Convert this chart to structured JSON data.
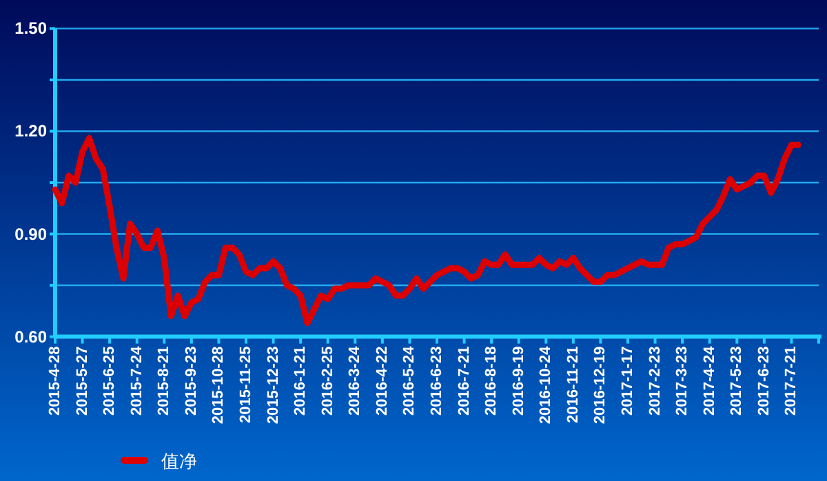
{
  "chart_data": {
    "type": "line",
    "categories": [
      "2015-4-28",
      null,
      null,
      null,
      "2015-5-27",
      null,
      null,
      null,
      "2015-6-25",
      null,
      null,
      null,
      "2015-7-24",
      null,
      null,
      null,
      "2015-8-21",
      null,
      null,
      null,
      "2015-9-23",
      null,
      null,
      null,
      "2015-10-28",
      null,
      null,
      null,
      "2015-11-25",
      null,
      null,
      null,
      "2015-12-23",
      null,
      null,
      null,
      "2016-1-21",
      null,
      null,
      null,
      "2016-2-25",
      null,
      null,
      null,
      "2016-3-24",
      null,
      null,
      null,
      "2016-4-22",
      null,
      null,
      null,
      "2016-5-24",
      null,
      null,
      null,
      "2016-6-23",
      null,
      null,
      null,
      "2016-7-21",
      null,
      null,
      null,
      "2016-8-18",
      null,
      null,
      null,
      "2016-9-19",
      null,
      null,
      null,
      "2016-10-24",
      null,
      null,
      null,
      "2016-11-21",
      null,
      null,
      null,
      "2016-12-19",
      null,
      null,
      null,
      "2017-1-17",
      null,
      null,
      null,
      "2017-2-23",
      null,
      null,
      null,
      "2017-3-23",
      null,
      null,
      null,
      "2017-4-24",
      null,
      null,
      null,
      "2017-5-23",
      null,
      null,
      null,
      "2017-6-23",
      null,
      null,
      null,
      "2017-7-21",
      null,
      null,
      null,
      null
    ],
    "series": [
      {
        "name": "值净",
        "color": "#dd0000",
        "values": [
          1.03,
          0.99,
          1.07,
          1.05,
          1.14,
          1.18,
          1.12,
          1.09,
          0.98,
          0.86,
          0.77,
          0.93,
          0.9,
          0.86,
          0.86,
          0.91,
          0.83,
          0.66,
          0.72,
          0.66,
          0.7,
          0.71,
          0.76,
          0.78,
          0.78,
          0.86,
          0.86,
          0.84,
          0.79,
          0.78,
          0.8,
          0.8,
          0.82,
          0.8,
          0.75,
          0.74,
          0.72,
          0.64,
          0.68,
          0.72,
          0.71,
          0.74,
          0.74,
          0.75,
          0.75,
          0.75,
          0.75,
          0.77,
          0.76,
          0.75,
          0.72,
          0.72,
          0.74,
          0.77,
          0.74,
          0.76,
          0.78,
          0.79,
          0.8,
          0.8,
          0.79,
          0.77,
          0.78,
          0.82,
          0.81,
          0.81,
          0.84,
          0.81,
          0.81,
          0.81,
          0.81,
          0.83,
          0.81,
          0.8,
          0.82,
          0.81,
          0.83,
          0.8,
          0.78,
          0.76,
          0.76,
          0.78,
          0.78,
          0.79,
          0.8,
          0.81,
          0.82,
          0.81,
          0.81,
          0.81,
          0.86,
          0.87,
          0.87,
          0.88,
          0.89,
          0.93,
          0.95,
          0.97,
          1.01,
          1.06,
          1.03,
          1.04,
          1.05,
          1.07,
          1.07,
          1.02,
          1.06,
          1.12,
          1.16,
          1.16,
          null,
          null,
          null
        ]
      }
    ],
    "ylim": [
      0.6,
      1.5
    ],
    "yticks": [
      {
        "value": 0.6,
        "label": "0.60"
      },
      {
        "value": 0.75,
        "label": null
      },
      {
        "value": 0.9,
        "label": "0.90"
      },
      {
        "value": 1.05,
        "label": null
      },
      {
        "value": 1.2,
        "label": "1.20"
      },
      {
        "value": 1.35,
        "label": null
      },
      {
        "value": 1.5,
        "label": "1.50"
      }
    ],
    "grid": "y",
    "legend": "bottom left",
    "line_style": "solid",
    "marker": "none"
  }
}
